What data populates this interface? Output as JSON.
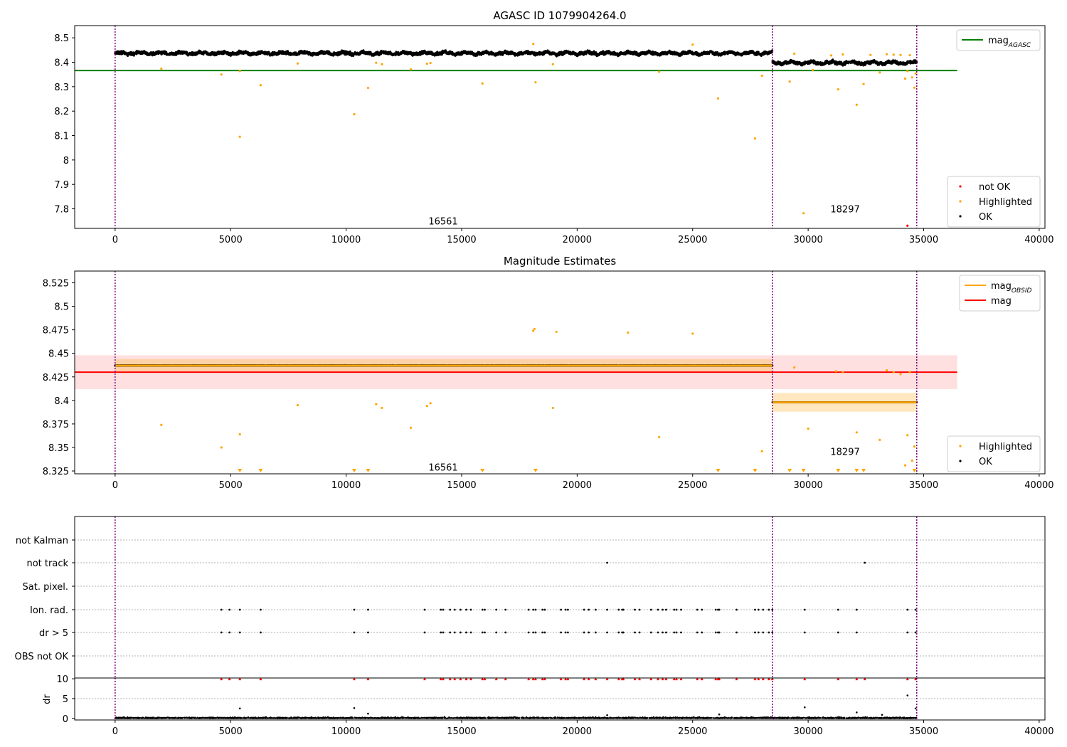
{
  "figure_title": "AGASC ID 1079904264.0",
  "colors": {
    "ok": "#000000",
    "highlighted": "#ffa500",
    "not_ok": "#ff0000",
    "mag_agasc": "#008000",
    "mag": "#ff0000",
    "mag_obsid": "#ffa500",
    "obs_boundary": "#800080"
  },
  "chart_data": [
    {
      "type": "scatter",
      "title": "AGASC ID 1079904264.0",
      "xlim": [
        -1750,
        40250
      ],
      "ylim": [
        7.72,
        8.55
      ],
      "xticks": [
        0,
        5000,
        10000,
        15000,
        20000,
        25000,
        30000,
        35000,
        40000
      ],
      "yticks": [
        7.8,
        7.9,
        8.0,
        8.1,
        8.2,
        8.3,
        8.4,
        8.5
      ],
      "grid": false,
      "legends": [
        {
          "placement": "top-right",
          "entries": [
            {
              "label": "mag",
              "sub": "AGASC",
              "kind": "line",
              "color": "#008000"
            }
          ]
        },
        {
          "placement": "bottom-right",
          "entries": [
            {
              "label": "not OK",
              "kind": "marker",
              "color": "#ff0000"
            },
            {
              "label": "Highlighted",
              "kind": "marker",
              "color": "#ffa500"
            },
            {
              "label": "OK",
              "kind": "marker",
              "color": "#000000"
            }
          ]
        }
      ],
      "obs_boundaries": [
        0,
        28450,
        34700
      ],
      "obs_labels": [
        {
          "text": "16561",
          "x": 14200,
          "y": 7.75
        },
        {
          "text": "18297",
          "x": 31600,
          "y": 7.8
        }
      ],
      "ok_bands": [
        {
          "x": [
            0,
            28450
          ],
          "center": 8.437,
          "spread": 0.03
        },
        {
          "x": [
            28450,
            34700
          ],
          "center": 8.398,
          "spread": 0.03
        }
      ],
      "mag_agasc": {
        "x": [
          -1750,
          36450
        ],
        "y": 8.366
      },
      "highlighted": [
        [
          2000,
          8.374
        ],
        [
          4600,
          8.35
        ],
        [
          5400,
          8.364
        ],
        [
          5400,
          8.095
        ],
        [
          6300,
          8.306
        ],
        [
          7900,
          8.395
        ],
        [
          10350,
          8.187
        ],
        [
          10950,
          8.295
        ],
        [
          11300,
          8.398
        ],
        [
          11550,
          8.392
        ],
        [
          12800,
          8.371
        ],
        [
          13500,
          8.394
        ],
        [
          13650,
          8.397
        ],
        [
          15900,
          8.313
        ],
        [
          18100,
          8.475
        ],
        [
          18200,
          8.318
        ],
        [
          18950,
          8.392
        ],
        [
          23550,
          8.361
        ],
        [
          25000,
          8.472
        ],
        [
          26100,
          8.252
        ],
        [
          27700,
          8.088
        ],
        [
          28000,
          8.345
        ],
        [
          29200,
          8.321
        ],
        [
          29400,
          8.435
        ],
        [
          29800,
          7.782
        ],
        [
          30200,
          8.368
        ],
        [
          31000,
          8.428
        ],
        [
          31300,
          8.289
        ],
        [
          31500,
          8.432
        ],
        [
          32100,
          8.226
        ],
        [
          32400,
          8.311
        ],
        [
          32700,
          8.43
        ],
        [
          33100,
          8.358
        ],
        [
          33400,
          8.433
        ],
        [
          33700,
          8.431
        ],
        [
          34000,
          8.43
        ],
        [
          34200,
          8.333
        ],
        [
          34300,
          8.364
        ],
        [
          34400,
          8.429
        ],
        [
          34500,
          8.338
        ],
        [
          34600,
          8.296
        ],
        [
          34650,
          8.354
        ]
      ],
      "not_ok": [
        [
          34300,
          7.731
        ]
      ]
    },
    {
      "type": "scatter",
      "title": "Magnitude Estimates",
      "xlim": [
        -1750,
        40250
      ],
      "ylim": [
        8.322,
        8.5375
      ],
      "xticks": [
        0,
        5000,
        10000,
        15000,
        20000,
        25000,
        30000,
        35000,
        40000
      ],
      "yticks": [
        8.325,
        8.35,
        8.375,
        8.4,
        8.425,
        8.45,
        8.475,
        8.5,
        8.525
      ],
      "grid": false,
      "legends": [
        {
          "placement": "top-right",
          "entries": [
            {
              "label": "mag",
              "sub": "OBSID",
              "kind": "line",
              "color": "#ffa500"
            },
            {
              "label": "mag",
              "kind": "line",
              "color": "#ff0000"
            }
          ]
        },
        {
          "placement": "bottom-right",
          "entries": [
            {
              "label": "Highlighted",
              "kind": "marker",
              "color": "#ffa500"
            },
            {
              "label": "OK",
              "kind": "marker",
              "color": "#000000"
            }
          ]
        }
      ],
      "obs_boundaries": [
        0,
        28450,
        34700
      ],
      "obs_labels": [
        {
          "text": "16561",
          "x": 14200,
          "y": 8.329
        },
        {
          "text": "18297",
          "x": 31600,
          "y": 8.346
        }
      ],
      "ok_bands": [
        {
          "x": [
            0,
            28450
          ],
          "center": 8.437,
          "spread": 0.017
        },
        {
          "x": [
            28450,
            34700
          ],
          "center": 8.398,
          "spread": 0.016
        }
      ],
      "mag": {
        "x": [
          -1750,
          36450
        ],
        "y": 8.43,
        "band": [
          8.412,
          8.448
        ]
      },
      "mag_obsid": [
        {
          "x": [
            0,
            28450
          ],
          "y": 8.437,
          "band": [
            8.43,
            8.444
          ]
        },
        {
          "x": [
            28450,
            34700
          ],
          "y": 8.398,
          "band": [
            8.388,
            8.408
          ]
        }
      ],
      "highlighted": [
        [
          2000,
          8.374
        ],
        [
          4600,
          8.35
        ],
        [
          5400,
          8.364
        ],
        [
          7900,
          8.395
        ],
        [
          11300,
          8.396
        ],
        [
          11550,
          8.392
        ],
        [
          12800,
          8.371
        ],
        [
          13500,
          8.394
        ],
        [
          13650,
          8.397
        ],
        [
          18100,
          8.474
        ],
        [
          18150,
          8.476
        ],
        [
          18950,
          8.392
        ],
        [
          19100,
          8.473
        ],
        [
          22200,
          8.472
        ],
        [
          23550,
          8.361
        ],
        [
          25000,
          8.471
        ],
        [
          28000,
          8.346
        ],
        [
          29400,
          8.435
        ],
        [
          30000,
          8.37
        ],
        [
          31200,
          8.431
        ],
        [
          31500,
          8.43
        ],
        [
          32100,
          8.366
        ],
        [
          33100,
          8.358
        ],
        [
          33400,
          8.432
        ],
        [
          33700,
          8.43
        ],
        [
          34000,
          8.428
        ],
        [
          34200,
          8.331
        ],
        [
          34300,
          8.363
        ],
        [
          34400,
          8.43
        ],
        [
          34500,
          8.336
        ],
        [
          34600,
          8.351
        ]
      ],
      "below_range": [
        5400,
        6300,
        10350,
        10950,
        15900,
        18200,
        26100,
        27700,
        29200,
        29800,
        31300,
        32100,
        32400,
        34600
      ]
    },
    {
      "type": "scatter",
      "title": "",
      "xlim": [
        -1750,
        40250
      ],
      "rows": [
        "not Kalman",
        "not track",
        "Sat. pixel.",
        "Ion. rad.",
        "dr > 5",
        "OBS not OK"
      ],
      "obs_boundaries": [
        0,
        28450,
        34700
      ],
      "row_points": {
        "not Kalman": [],
        "not track": [
          21300,
          32450
        ],
        "Sat. pixel.": [],
        "Ion. rad.": [
          4600,
          4950,
          5400,
          6300,
          10350,
          10950,
          13400,
          14100,
          14200,
          14500,
          14700,
          14950,
          15200,
          15400,
          15900,
          16000,
          16500,
          16900,
          17900,
          18100,
          18200,
          18500,
          18600,
          19300,
          19500,
          19600,
          20300,
          20500,
          20800,
          21300,
          21800,
          21950,
          22000,
          22500,
          22700,
          23200,
          23500,
          23700,
          23850,
          24200,
          24300,
          24500,
          25200,
          25400,
          26000,
          26100,
          26150,
          26900,
          27700,
          27850,
          28050,
          28300,
          28450,
          29850,
          31300,
          32100,
          34300,
          34650
        ],
        "dr > 5": [
          4600,
          4950,
          5400,
          6300,
          10350,
          10950,
          13400,
          14100,
          14200,
          14500,
          14700,
          14950,
          15200,
          15400,
          15900,
          16000,
          16500,
          16900,
          17900,
          18100,
          18200,
          18500,
          18600,
          19300,
          19500,
          19600,
          20300,
          20500,
          20800,
          21300,
          21800,
          21950,
          22000,
          22500,
          22700,
          23200,
          23500,
          23700,
          23850,
          24200,
          24300,
          24500,
          25200,
          25400,
          26000,
          26100,
          26150,
          26900,
          27700,
          27850,
          28050,
          28300,
          28450,
          29850,
          31300,
          32100,
          34300,
          34650
        ],
        "OBS not OK": []
      }
    },
    {
      "type": "scatter",
      "title": "",
      "xlim": [
        -1750,
        40250
      ],
      "ylim": [
        -0.4,
        10.2
      ],
      "yticks": [
        0,
        5,
        10
      ],
      "ylabel": "dr",
      "xticks": [
        0,
        5000,
        10000,
        15000,
        20000,
        25000,
        30000,
        35000,
        40000
      ],
      "obs_boundaries": [
        0,
        28450,
        34700
      ],
      "dr_baseline": [
        0,
        34700
      ],
      "dr_points": [
        [
          5400,
          2.5
        ],
        [
          10350,
          2.6
        ],
        [
          10950,
          1.2
        ],
        [
          29850,
          2.8
        ],
        [
          32100,
          1.5
        ],
        [
          34300,
          5.8
        ],
        [
          34650,
          2.5
        ],
        [
          21300,
          0.8
        ],
        [
          26150,
          1.0
        ],
        [
          33200,
          0.9
        ]
      ],
      "dr_capped": [
        4600,
        4950,
        5400,
        6300,
        10350,
        10950,
        13400,
        14100,
        14200,
        14500,
        14700,
        14950,
        15200,
        15400,
        15900,
        16000,
        16500,
        16900,
        17900,
        18100,
        18200,
        18500,
        18600,
        19300,
        19500,
        19600,
        20300,
        20500,
        20800,
        21300,
        21800,
        21950,
        22000,
        22500,
        22700,
        23200,
        23500,
        23700,
        23850,
        24200,
        24300,
        24500,
        25200,
        25400,
        26000,
        26100,
        26150,
        26900,
        27700,
        27850,
        28050,
        28300,
        28450,
        29850,
        31300,
        32100,
        32450,
        34300,
        34650
      ]
    }
  ]
}
